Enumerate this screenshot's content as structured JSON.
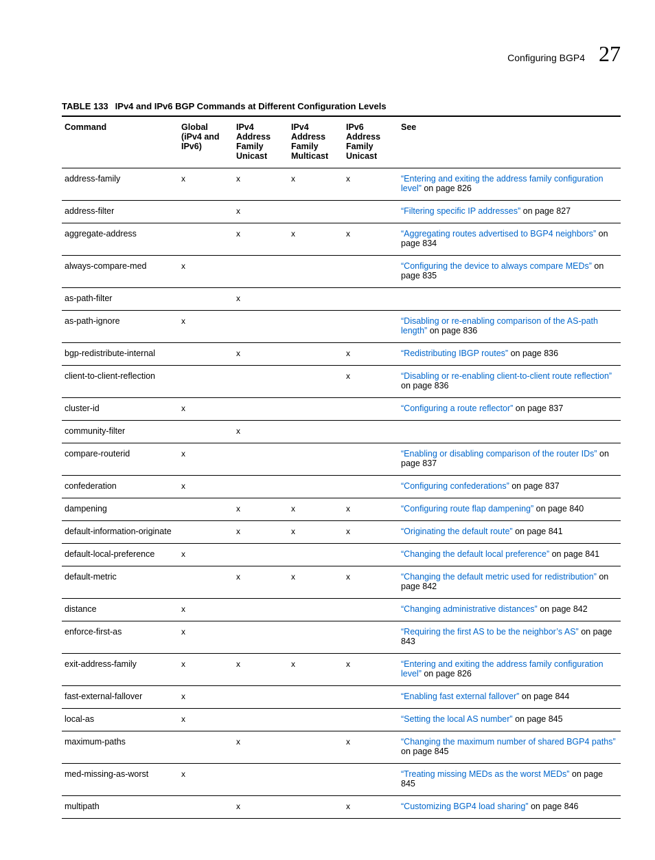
{
  "header": {
    "section_title": "Configuring BGP4",
    "chapter_number": "27"
  },
  "table_meta": {
    "label": "TABLE 133",
    "caption": "IPv4 and IPv6 BGP Commands at Different Configuration Levels"
  },
  "columns": [
    {
      "label": "Command"
    },
    {
      "label": "Global (iPv4 and IPv6)"
    },
    {
      "label": "IPv4 Address Family Unicast"
    },
    {
      "label": "IPv4 Address Family Multicast"
    },
    {
      "label": "IPv6 Address Family Unicast"
    },
    {
      "label": "See"
    }
  ],
  "mark": "x",
  "rows": [
    {
      "command": "address-family",
      "global": true,
      "v4u": true,
      "v4m": true,
      "v6u": true,
      "link": "“Entering and exiting the address family configuration level”",
      "suffix": " on page 826"
    },
    {
      "command": "address-filter",
      "global": false,
      "v4u": true,
      "v4m": false,
      "v6u": false,
      "link": "“Filtering specific IP addresses”",
      "suffix": " on page 827"
    },
    {
      "command": "aggregate-address",
      "global": false,
      "v4u": true,
      "v4m": true,
      "v6u": true,
      "link": "“Aggregating routes advertised to BGP4 neighbors”",
      "suffix": " on page 834"
    },
    {
      "command": "always-compare-med",
      "global": true,
      "v4u": false,
      "v4m": false,
      "v6u": false,
      "link": "“Configuring the device to always compare MEDs”",
      "suffix": " on page 835"
    },
    {
      "command": "as-path-filter",
      "global": false,
      "v4u": true,
      "v4m": false,
      "v6u": false,
      "link": "",
      "suffix": ""
    },
    {
      "command": "as-path-ignore",
      "global": true,
      "v4u": false,
      "v4m": false,
      "v6u": false,
      "link": "“Disabling or re-enabling comparison of the AS-path length”",
      "suffix": " on page 836"
    },
    {
      "command": "bgp-redistribute-internal",
      "global": false,
      "v4u": true,
      "v4m": false,
      "v6u": true,
      "link": "“Redistributing IBGP routes”",
      "suffix": " on page 836"
    },
    {
      "command": "client-to-client-reflection",
      "global": false,
      "v4u": false,
      "v4m": false,
      "v6u": true,
      "link": "“Disabling or re-enabling client-to-client route reflection”",
      "suffix": " on page 836"
    },
    {
      "command": "cluster-id",
      "global": true,
      "v4u": false,
      "v4m": false,
      "v6u": false,
      "link": "“Configuring a route reflector”",
      "suffix": " on page 837"
    },
    {
      "command": "community-filter",
      "global": false,
      "v4u": true,
      "v4m": false,
      "v6u": false,
      "link": "",
      "suffix": ""
    },
    {
      "command": "compare-routerid",
      "global": true,
      "v4u": false,
      "v4m": false,
      "v6u": false,
      "link": "“Enabling or disabling comparison of the router IDs”",
      "suffix": " on page 837"
    },
    {
      "command": "confederation",
      "global": true,
      "v4u": false,
      "v4m": false,
      "v6u": false,
      "link": "“Configuring confederations”",
      "suffix": " on page 837"
    },
    {
      "command": "dampening",
      "global": false,
      "v4u": true,
      "v4m": true,
      "v6u": true,
      "link": "“Configuring route flap dampening”",
      "suffix": " on page 840"
    },
    {
      "command": "default-information-originate",
      "global": false,
      "v4u": true,
      "v4m": true,
      "v6u": true,
      "link": "“Originating the default route”",
      "suffix": " on page 841"
    },
    {
      "command": "default-local-preference",
      "global": true,
      "v4u": false,
      "v4m": false,
      "v6u": false,
      "link": "“Changing the default local preference”",
      "suffix": " on page 841"
    },
    {
      "command": "default-metric",
      "global": false,
      "v4u": true,
      "v4m": true,
      "v6u": true,
      "link": "“Changing the default metric used for redistribution”",
      "suffix": " on page 842"
    },
    {
      "command": "distance",
      "global": true,
      "v4u": false,
      "v4m": false,
      "v6u": false,
      "link": "“Changing administrative distances”",
      "suffix": " on page 842"
    },
    {
      "command": "enforce-first-as",
      "global": true,
      "v4u": false,
      "v4m": false,
      "v6u": false,
      "link": "“Requiring the first AS to be the neighbor’s AS”",
      "suffix": " on page 843"
    },
    {
      "command": "exit-address-family",
      "global": true,
      "v4u": true,
      "v4m": true,
      "v6u": true,
      "link": "“Entering and exiting the address family configuration level”",
      "suffix": " on page 826"
    },
    {
      "command": "fast-external-fallover",
      "global": true,
      "v4u": false,
      "v4m": false,
      "v6u": false,
      "link": "“Enabling fast external fallover”",
      "suffix": " on page 844"
    },
    {
      "command": "local-as",
      "global": true,
      "v4u": false,
      "v4m": false,
      "v6u": false,
      "link": "“Setting the local AS number”",
      "suffix": " on page 845"
    },
    {
      "command": "maximum-paths",
      "global": false,
      "v4u": true,
      "v4m": false,
      "v6u": true,
      "link": "“Changing the maximum number of shared BGP4 paths”",
      "suffix": " on page 845"
    },
    {
      "command": "med-missing-as-worst",
      "global": true,
      "v4u": false,
      "v4m": false,
      "v6u": false,
      "link": "“Treating missing MEDs as the worst MEDs”",
      "suffix": " on page 845"
    },
    {
      "command": "multipath",
      "global": false,
      "v4u": true,
      "v4m": false,
      "v6u": true,
      "link": "“Customizing BGP4 load sharing”",
      "suffix": " on page 846"
    }
  ],
  "styling": {
    "link_color": "#0066cc",
    "text_color": "#000000",
    "border_color": "#000000",
    "background_color": "#ffffff",
    "body_font_size": 13,
    "header_font_size": 14,
    "chapter_font_size": 32
  }
}
